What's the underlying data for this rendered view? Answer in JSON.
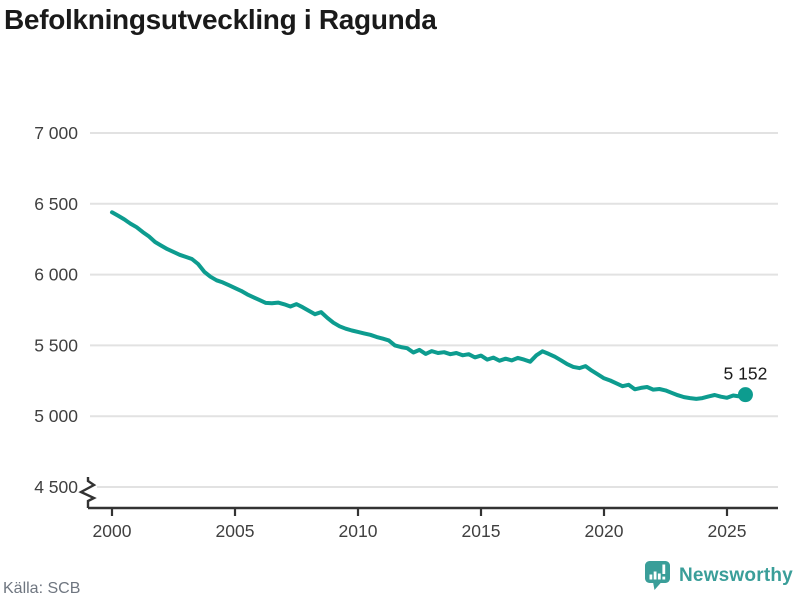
{
  "title": "Befolkningsutveckling i Ragunda",
  "source": "Källa: SCB",
  "brand": {
    "name": "Newsworthy"
  },
  "colors": {
    "line": "#0d9c8f",
    "brand": "#3a9e99",
    "grid": "#e2e2e2",
    "axis": "#333333",
    "tick_text": "#404040",
    "title_text": "#1a1a1a",
    "source_text": "#6f7680",
    "annotation_text": "#1a1a1a"
  },
  "chart_data": {
    "type": "line",
    "title": "Befolkningsutveckling i Ragunda",
    "xlabel": "",
    "ylabel": "",
    "grid": true,
    "legend": "none",
    "axis_break_at_bottom": true,
    "x_ticks": [
      2000,
      2005,
      2010,
      2015,
      2020,
      2025
    ],
    "y_ticks": [
      7000,
      6500,
      6000,
      5500,
      5000,
      4500
    ],
    "y_tick_labels": [
      "7 000",
      "6 500",
      "6 000",
      "5 500",
      "5 000",
      "4 500"
    ],
    "ylim": [
      4500,
      7000
    ],
    "xlim": [
      1999.1,
      2027.1
    ],
    "last_value_label": "5 152",
    "series": [
      {
        "name": "Ragunda",
        "x": [
          2000,
          2000.25,
          2000.5,
          2000.75,
          2001,
          2001.25,
          2001.5,
          2001.75,
          2002,
          2002.25,
          2002.5,
          2002.75,
          2003,
          2003.25,
          2003.5,
          2003.75,
          2004,
          2004.25,
          2004.5,
          2004.75,
          2005,
          2005.25,
          2005.5,
          2005.75,
          2006,
          2006.25,
          2006.5,
          2006.75,
          2007,
          2007.25,
          2007.5,
          2007.75,
          2008,
          2008.25,
          2008.5,
          2008.75,
          2009,
          2009.25,
          2009.5,
          2009.75,
          2010,
          2010.25,
          2010.5,
          2010.75,
          2011,
          2011.25,
          2011.5,
          2011.75,
          2012,
          2012.25,
          2012.5,
          2012.75,
          2013,
          2013.25,
          2013.5,
          2013.75,
          2014,
          2014.25,
          2014.5,
          2014.75,
          2015,
          2015.25,
          2015.5,
          2015.75,
          2016,
          2016.25,
          2016.5,
          2016.75,
          2017,
          2017.25,
          2017.5,
          2017.75,
          2018,
          2018.25,
          2018.5,
          2018.75,
          2019,
          2019.25,
          2019.5,
          2019.75,
          2020,
          2020.25,
          2020.5,
          2020.75,
          2021,
          2021.25,
          2021.5,
          2021.75,
          2022,
          2022.25,
          2022.5,
          2022.75,
          2023,
          2023.25,
          2023.5,
          2023.75,
          2024,
          2024.25,
          2024.5,
          2024.75,
          2025,
          2025.25,
          2025.5,
          2025.75
        ],
        "values": [
          6440,
          6415,
          6390,
          6360,
          6335,
          6300,
          6270,
          6230,
          6205,
          6180,
          6160,
          6140,
          6125,
          6110,
          6075,
          6020,
          5985,
          5960,
          5945,
          5925,
          5905,
          5885,
          5860,
          5840,
          5820,
          5800,
          5798,
          5802,
          5790,
          5775,
          5792,
          5770,
          5745,
          5720,
          5735,
          5695,
          5660,
          5635,
          5618,
          5605,
          5595,
          5585,
          5575,
          5560,
          5548,
          5535,
          5500,
          5488,
          5480,
          5450,
          5468,
          5440,
          5460,
          5446,
          5452,
          5438,
          5446,
          5430,
          5438,
          5415,
          5428,
          5400,
          5414,
          5392,
          5406,
          5394,
          5412,
          5400,
          5385,
          5430,
          5458,
          5440,
          5420,
          5395,
          5368,
          5348,
          5340,
          5354,
          5322,
          5295,
          5268,
          5252,
          5232,
          5212,
          5222,
          5190,
          5200,
          5206,
          5188,
          5192,
          5182,
          5165,
          5148,
          5135,
          5128,
          5122,
          5128,
          5140,
          5150,
          5138,
          5130,
          5146,
          5140,
          5152
        ]
      }
    ]
  }
}
